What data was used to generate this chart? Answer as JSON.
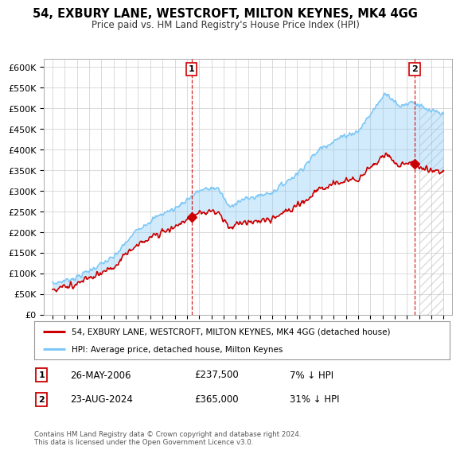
{
  "title": "54, EXBURY LANE, WESTCROFT, MILTON KEYNES, MK4 4GG",
  "subtitle": "Price paid vs. HM Land Registry's House Price Index (HPI)",
  "ylabel_ticks": [
    "£0",
    "£50K",
    "£100K",
    "£150K",
    "£200K",
    "£250K",
    "£300K",
    "£350K",
    "£400K",
    "£450K",
    "£500K",
    "£550K",
    "£600K"
  ],
  "ylim": [
    0,
    620000
  ],
  "ytick_vals": [
    0,
    50000,
    100000,
    150000,
    200000,
    250000,
    300000,
    350000,
    400000,
    450000,
    500000,
    550000,
    600000
  ],
  "hpi_color": "#7ec8f7",
  "price_color": "#cc0000",
  "sale1_year": 2006.38,
  "sale1_price": 237500,
  "sale1_label": "1",
  "sale2_year": 2024.63,
  "sale2_price": 365000,
  "sale2_label": "2",
  "legend_line1": "54, EXBURY LANE, WESTCROFT, MILTON KEYNES, MK4 4GG (detached house)",
  "legend_line2": "HPI: Average price, detached house, Milton Keynes",
  "annot1_date": "26-MAY-2006",
  "annot1_price": "£237,500",
  "annot1_hpi": "7% ↓ HPI",
  "annot2_date": "23-AUG-2024",
  "annot2_price": "£365,000",
  "annot2_hpi": "31% ↓ HPI",
  "footer": "Contains HM Land Registry data © Crown copyright and database right 2024.\nThis data is licensed under the Open Government Licence v3.0.",
  "bg_color": "#ffffff",
  "grid_color": "#cccccc"
}
